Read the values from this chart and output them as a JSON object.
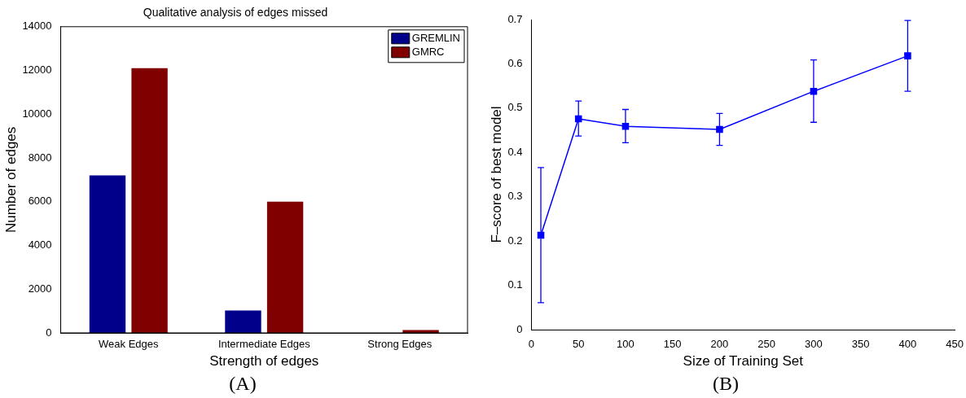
{
  "chart_data": [
    {
      "type": "bar",
      "title": "Qualitative analysis of edges missed",
      "xlabel": "Strength of edges",
      "ylabel": "Number of edges",
      "categories": [
        "Weak Edges",
        "Intermediate Edges",
        "Strong Edges"
      ],
      "series": [
        {
          "name": "GREMLIN",
          "color": "#00008b",
          "values": [
            7200,
            1020,
            0
          ]
        },
        {
          "name": "GMRC",
          "color": "#800000",
          "values": [
            12100,
            6000,
            130
          ]
        }
      ],
      "ylim": [
        0,
        14000
      ],
      "yticks": [
        0,
        2000,
        4000,
        6000,
        8000,
        10000,
        12000,
        14000
      ],
      "grid": false,
      "legend": "top right",
      "annotations": [
        "(A)"
      ]
    },
    {
      "type": "line",
      "xlabel": "Size of Training Set",
      "ylabel": "F–score of best model",
      "x": [
        10,
        50,
        100,
        200,
        300,
        400
      ],
      "series": [
        {
          "color": "#0000ff",
          "values": [
            0.213,
            0.476,
            0.459,
            0.452,
            0.538,
            0.618
          ],
          "errors": [
            [
              0.061,
              0.366
            ],
            [
              0.437,
              0.516
            ],
            [
              0.422,
              0.497
            ],
            [
              0.416,
              0.488
            ],
            [
              0.468,
              0.609
            ],
            [
              0.538,
              0.698
            ]
          ]
        }
      ],
      "xlim": [
        0,
        450
      ],
      "xticks": [
        0,
        50,
        100,
        150,
        200,
        250,
        300,
        350,
        400,
        450
      ],
      "ylim": [
        0,
        0.7
      ],
      "yticks": [
        0,
        0.1,
        0.2,
        0.3,
        0.4,
        0.5,
        0.6,
        0.7
      ],
      "grid": false,
      "legend": false,
      "marker": "square",
      "line_style": "solid",
      "annotations": [
        "(B)"
      ]
    }
  ]
}
